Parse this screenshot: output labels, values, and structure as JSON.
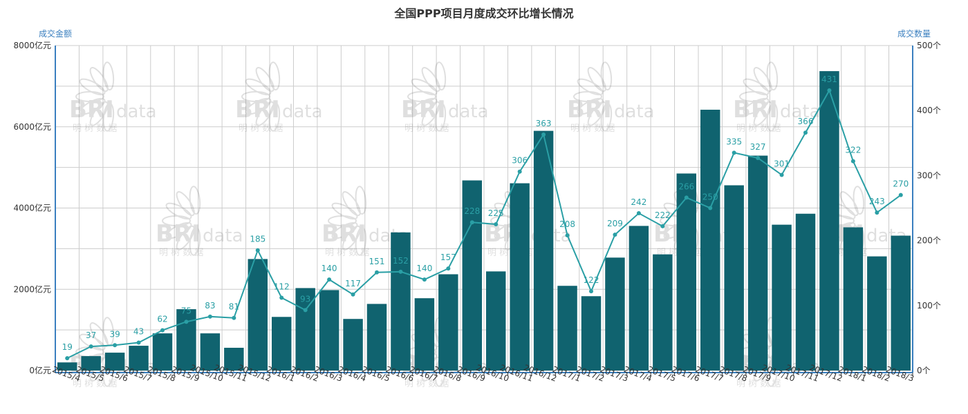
{
  "chart_data": {
    "type": "bar+line",
    "title": "全国PPP项目月度成交环比增长情况",
    "ylabel_left": "成交金额",
    "ylabel_right": "成交数量",
    "ylim_left": [
      0,
      8000
    ],
    "ylim_right": [
      0,
      500
    ],
    "left_ticks": [
      "0亿元",
      "2000亿元",
      "4000亿元",
      "6000亿元",
      "8000亿元"
    ],
    "right_ticks": [
      "0个",
      "100个",
      "200个",
      "300个",
      "400个",
      "500个"
    ],
    "grid": true,
    "categories": [
      "2015/4",
      "2015/5",
      "2015/6",
      "2015/7",
      "2015/8",
      "2015/9",
      "2015/10",
      "2015/11",
      "2015/12",
      "2016/1",
      "2016/2",
      "2016/3",
      "2016/4",
      "2016/5",
      "2016/6",
      "2016/7",
      "2016/8",
      "2016/9",
      "2016/10",
      "2016/11",
      "2016/12",
      "2017/1",
      "2017/2",
      "2017/3",
      "2017/4",
      "2017/5",
      "2017/6",
      "2017/7",
      "2017/8",
      "2017/9",
      "2017/10",
      "2017/11",
      "2017/12",
      "2018/1",
      "2018/2",
      "2018/3"
    ],
    "series": [
      {
        "name": "成交金额",
        "type": "bar",
        "axis": "left",
        "color": "#10636f",
        "values": [
          200,
          355,
          440,
          610,
          915,
          1510,
          915,
          560,
          2745,
          1320,
          2030,
          1980,
          1270,
          1640,
          3400,
          1780,
          2370,
          4680,
          2440,
          4610,
          5900,
          2085,
          1830,
          2780,
          3560,
          2860,
          4850,
          6420,
          4560,
          5290,
          3590,
          3860,
          7370,
          3525,
          2810,
          3320
        ]
      },
      {
        "name": "成交数量",
        "type": "line",
        "axis": "right",
        "color": "#2a9fa5",
        "values": [
          19,
          37,
          39,
          43,
          62,
          75,
          83,
          81,
          185,
          112,
          93,
          140,
          117,
          151,
          152,
          140,
          157,
          228,
          225,
          306,
          363,
          208,
          122,
          209,
          242,
          222,
          266,
          250,
          335,
          327,
          301,
          366,
          431,
          322,
          243,
          270
        ]
      }
    ]
  },
  "watermark": {
    "brand": "BRI",
    "sub": "data",
    "cn": "明 树 数 据"
  }
}
